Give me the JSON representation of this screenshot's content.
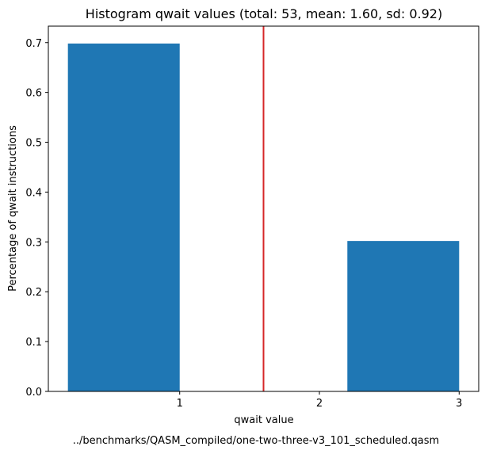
{
  "chart_data": {
    "type": "bar",
    "title": "Histogram qwait values (total: 53, mean: 1.60, sd: 0.92)",
    "xlabel": "qwait value",
    "ylabel": "Percentage of qwait instructions",
    "caption": "../benchmarks/QASM_compiled/one-two-three-v3_101_scheduled.qasm",
    "bars": [
      {
        "x_start": 0.2,
        "x_end": 1.0,
        "value": 0.6981
      },
      {
        "x_start": 1.0,
        "x_end": 1.8,
        "value": 0.0
      },
      {
        "x_start": 2.2,
        "x_end": 3.0,
        "value": 0.3019
      }
    ],
    "mean_line": {
      "x": 1.6,
      "color": "#d62728"
    },
    "bar_color": "#1f77b4",
    "xlim": [
      0.06,
      3.14
    ],
    "ylim": [
      0,
      0.733
    ],
    "xticks": [
      "1",
      "2",
      "3"
    ],
    "yticks": [
      "0.0",
      "0.1",
      "0.2",
      "0.3",
      "0.4",
      "0.5",
      "0.6",
      "0.7"
    ],
    "grid": false,
    "legend": "none"
  }
}
